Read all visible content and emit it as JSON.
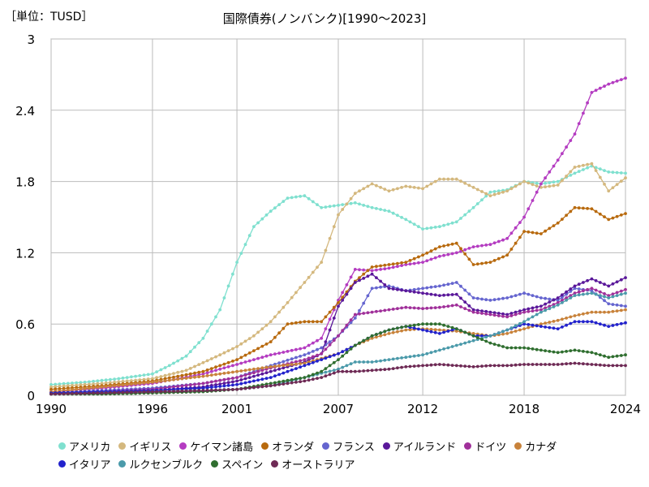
{
  "unit_label": "［単位：TUSD］",
  "chart_data": {
    "type": "line",
    "title": "国際債券(ノンバンク)[1990～2023]",
    "xlim": [
      1990,
      2024
    ],
    "ylim": [
      0,
      3
    ],
    "xticks": [
      "1990",
      "1996",
      "2001",
      "2007",
      "2012",
      "2018",
      "2024"
    ],
    "xtick_values": [
      1990,
      1996,
      2001,
      2007,
      2012,
      2018,
      2024
    ],
    "yticks": [
      "0",
      "0.6",
      "1.2",
      "1.8",
      "2.4",
      "3"
    ],
    "ytick_values": [
      0,
      0.6,
      1.2,
      1.8,
      2.4,
      3
    ],
    "grid": true,
    "legend_position": "bottom",
    "legend_rows": [
      [
        0,
        1,
        2,
        3,
        4,
        5,
        6,
        7
      ],
      [
        8,
        9,
        10,
        11
      ]
    ],
    "series": [
      {
        "name": "アメリカ",
        "color": "#7fe0cf",
        "x": [
          1990,
          1992,
          1994,
          1996,
          1997,
          1998,
          1999,
          2000,
          2001,
          2002,
          2003,
          2004,
          2005,
          2006,
          2007,
          2008,
          2009,
          2010,
          2011,
          2012,
          2013,
          2014,
          2015,
          2016,
          2017,
          2018,
          2019,
          2020,
          2021,
          2022,
          2023,
          2024
        ],
        "y": [
          0.09,
          0.11,
          0.14,
          0.18,
          0.25,
          0.33,
          0.48,
          0.72,
          1.12,
          1.42,
          1.55,
          1.66,
          1.68,
          1.58,
          1.6,
          1.62,
          1.58,
          1.55,
          1.48,
          1.4,
          1.42,
          1.46,
          1.58,
          1.71,
          1.73,
          1.8,
          1.78,
          1.8,
          1.87,
          1.93,
          1.88,
          1.87
        ]
      },
      {
        "name": "イギリス",
        "color": "#d4b87e",
        "x": [
          1990,
          1993,
          1996,
          1998,
          2000,
          2001,
          2002,
          2003,
          2004,
          2005,
          2006,
          2007,
          2008,
          2009,
          2010,
          2011,
          2012,
          2013,
          2014,
          2015,
          2016,
          2017,
          2018,
          2019,
          2020,
          2021,
          2022,
          2023,
          2024
        ],
        "y": [
          0.07,
          0.1,
          0.14,
          0.21,
          0.34,
          0.41,
          0.5,
          0.62,
          0.78,
          0.95,
          1.12,
          1.52,
          1.7,
          1.78,
          1.72,
          1.76,
          1.74,
          1.82,
          1.82,
          1.75,
          1.68,
          1.72,
          1.8,
          1.75,
          1.77,
          1.92,
          1.95,
          1.72,
          1.83
        ]
      },
      {
        "name": "ケイマン諸島",
        "color": "#b43cc1",
        "x": [
          1990,
          1993,
          1996,
          1999,
          2001,
          2003,
          2005,
          2006,
          2007,
          2008,
          2009,
          2010,
          2011,
          2012,
          2013,
          2014,
          2015,
          2016,
          2017,
          2018,
          2019,
          2020,
          2021,
          2022,
          2023,
          2024
        ],
        "y": [
          0.03,
          0.06,
          0.1,
          0.18,
          0.26,
          0.34,
          0.4,
          0.48,
          0.8,
          1.06,
          1.05,
          1.07,
          1.1,
          1.12,
          1.17,
          1.2,
          1.25,
          1.27,
          1.32,
          1.5,
          1.78,
          1.98,
          2.2,
          2.55,
          2.62,
          2.67
        ]
      },
      {
        "name": "オランダ",
        "color": "#b86a0e",
        "x": [
          1990,
          1993,
          1996,
          1999,
          2001,
          2003,
          2004,
          2005,
          2006,
          2007,
          2008,
          2009,
          2010,
          2011,
          2012,
          2013,
          2014,
          2015,
          2016,
          2017,
          2018,
          2019,
          2020,
          2021,
          2022,
          2023,
          2024
        ],
        "y": [
          0.05,
          0.08,
          0.12,
          0.2,
          0.3,
          0.45,
          0.6,
          0.62,
          0.62,
          0.78,
          0.96,
          1.08,
          1.1,
          1.12,
          1.18,
          1.25,
          1.28,
          1.1,
          1.12,
          1.18,
          1.38,
          1.36,
          1.45,
          1.58,
          1.57,
          1.48,
          1.53
        ]
      },
      {
        "name": "フランス",
        "color": "#6565cf",
        "x": [
          1990,
          1993,
          1996,
          1999,
          2001,
          2003,
          2005,
          2006,
          2007,
          2008,
          2009,
          2010,
          2011,
          2012,
          2013,
          2014,
          2015,
          2016,
          2017,
          2018,
          2019,
          2020,
          2021,
          2022,
          2023,
          2024
        ],
        "y": [
          0.02,
          0.04,
          0.06,
          0.1,
          0.15,
          0.25,
          0.34,
          0.4,
          0.5,
          0.65,
          0.9,
          0.92,
          0.88,
          0.9,
          0.92,
          0.95,
          0.82,
          0.8,
          0.82,
          0.86,
          0.82,
          0.8,
          0.9,
          0.88,
          0.77,
          0.75
        ]
      },
      {
        "name": "アイルランド",
        "color": "#5a189a",
        "x": [
          1990,
          1993,
          1996,
          1999,
          2001,
          2003,
          2005,
          2006,
          2007,
          2008,
          2009,
          2010,
          2011,
          2012,
          2013,
          2014,
          2015,
          2016,
          2017,
          2018,
          2019,
          2020,
          2021,
          2022,
          2023,
          2024
        ],
        "y": [
          0.01,
          0.02,
          0.04,
          0.07,
          0.12,
          0.2,
          0.28,
          0.35,
          0.75,
          0.95,
          1.02,
          0.9,
          0.88,
          0.86,
          0.84,
          0.85,
          0.72,
          0.7,
          0.68,
          0.72,
          0.75,
          0.82,
          0.92,
          0.98,
          0.92,
          0.99
        ]
      },
      {
        "name": "ドイツ",
        "color": "#a0309a",
        "x": [
          1990,
          1993,
          1996,
          1999,
          2001,
          2003,
          2005,
          2006,
          2007,
          2008,
          2009,
          2010,
          2011,
          2012,
          2013,
          2014,
          2015,
          2016,
          2017,
          2018,
          2019,
          2020,
          2021,
          2022,
          2023,
          2024
        ],
        "y": [
          0.02,
          0.03,
          0.05,
          0.1,
          0.15,
          0.23,
          0.3,
          0.35,
          0.5,
          0.68,
          0.7,
          0.72,
          0.74,
          0.73,
          0.74,
          0.76,
          0.7,
          0.68,
          0.66,
          0.7,
          0.72,
          0.78,
          0.86,
          0.9,
          0.84,
          0.89
        ]
      },
      {
        "name": "カナダ",
        "color": "#c8823a",
        "x": [
          1990,
          1993,
          1996,
          1999,
          2001,
          2003,
          2005,
          2007,
          2008,
          2009,
          2010,
          2011,
          2012,
          2013,
          2014,
          2015,
          2016,
          2017,
          2018,
          2019,
          2020,
          2021,
          2022,
          2023,
          2024
        ],
        "y": [
          0.03,
          0.07,
          0.11,
          0.16,
          0.2,
          0.24,
          0.27,
          0.35,
          0.42,
          0.48,
          0.52,
          0.55,
          0.56,
          0.55,
          0.54,
          0.52,
          0.5,
          0.52,
          0.56,
          0.6,
          0.63,
          0.67,
          0.7,
          0.7,
          0.72
        ]
      },
      {
        "name": "イタリア",
        "color": "#2222cc",
        "x": [
          1990,
          1993,
          1996,
          1999,
          2001,
          2003,
          2005,
          2006,
          2007,
          2008,
          2009,
          2010,
          2011,
          2012,
          2013,
          2014,
          2015,
          2016,
          2017,
          2018,
          2019,
          2020,
          2021,
          2022,
          2023,
          2024
        ],
        "y": [
          0.02,
          0.03,
          0.04,
          0.06,
          0.09,
          0.15,
          0.25,
          0.3,
          0.35,
          0.42,
          0.5,
          0.55,
          0.58,
          0.55,
          0.52,
          0.56,
          0.5,
          0.5,
          0.55,
          0.6,
          0.58,
          0.56,
          0.62,
          0.62,
          0.58,
          0.61
        ]
      },
      {
        "name": "ルクセンブルク",
        "color": "#4b9aaa",
        "x": [
          1990,
          1993,
          1996,
          1999,
          2001,
          2003,
          2005,
          2007,
          2008,
          2009,
          2010,
          2011,
          2012,
          2013,
          2014,
          2015,
          2016,
          2017,
          2018,
          2019,
          2020,
          2021,
          2022,
          2023,
          2024
        ],
        "y": [
          0.01,
          0.02,
          0.03,
          0.04,
          0.05,
          0.08,
          0.15,
          0.22,
          0.28,
          0.28,
          0.3,
          0.32,
          0.34,
          0.38,
          0.42,
          0.46,
          0.5,
          0.55,
          0.62,
          0.7,
          0.76,
          0.84,
          0.86,
          0.82,
          0.86
        ]
      },
      {
        "name": "スペイン",
        "color": "#2f6e2f",
        "x": [
          1990,
          1993,
          1996,
          1999,
          2001,
          2003,
          2005,
          2006,
          2007,
          2008,
          2009,
          2010,
          2011,
          2012,
          2013,
          2014,
          2015,
          2016,
          2017,
          2018,
          2019,
          2020,
          2021,
          2022,
          2023,
          2024
        ],
        "y": [
          0.01,
          0.01,
          0.02,
          0.03,
          0.05,
          0.1,
          0.15,
          0.2,
          0.3,
          0.42,
          0.5,
          0.55,
          0.58,
          0.6,
          0.6,
          0.56,
          0.5,
          0.44,
          0.4,
          0.4,
          0.38,
          0.36,
          0.38,
          0.36,
          0.32,
          0.34
        ]
      },
      {
        "name": "オーストラリア",
        "color": "#6e2a55",
        "x": [
          1990,
          1993,
          1996,
          1999,
          2001,
          2003,
          2005,
          2006,
          2007,
          2008,
          2009,
          2010,
          2011,
          2012,
          2013,
          2014,
          2015,
          2016,
          2017,
          2018,
          2019,
          2020,
          2021,
          2022,
          2023,
          2024
        ],
        "y": [
          0.01,
          0.02,
          0.03,
          0.04,
          0.05,
          0.08,
          0.12,
          0.15,
          0.2,
          0.2,
          0.21,
          0.22,
          0.24,
          0.25,
          0.26,
          0.25,
          0.24,
          0.25,
          0.25,
          0.26,
          0.26,
          0.26,
          0.27,
          0.26,
          0.25,
          0.25
        ]
      }
    ]
  }
}
